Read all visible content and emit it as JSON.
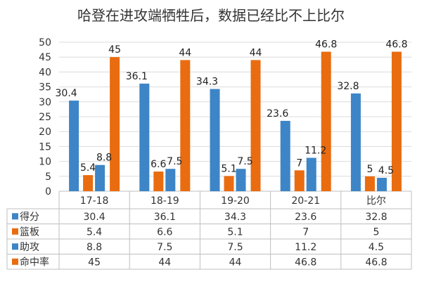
{
  "chart_data": {
    "type": "bar",
    "title": "哈登在进攻端牺牲后，数据已经比不上比尔",
    "categories": [
      "17-18",
      "18-19",
      "19-20",
      "20-21",
      "比尔"
    ],
    "ylim": [
      0,
      50
    ],
    "yticks": [
      0,
      5,
      10,
      15,
      20,
      25,
      30,
      35,
      40,
      45,
      50
    ],
    "grid": true,
    "legend": "inline table rows below chart",
    "series": [
      {
        "name": "得分",
        "color": "#3d85c6",
        "values": [
          30.4,
          36.1,
          34.3,
          23.6,
          32.8
        ]
      },
      {
        "name": "篮板",
        "color": "#e96c10",
        "values": [
          5.4,
          6.6,
          5.1,
          7,
          5
        ]
      },
      {
        "name": "助攻",
        "color": "#3d85c6",
        "values": [
          8.8,
          7.5,
          7.5,
          11.2,
          4.5
        ]
      },
      {
        "name": "命中率",
        "color": "#e96c10",
        "values": [
          45,
          44,
          44,
          46.8,
          46.8
        ]
      }
    ]
  }
}
